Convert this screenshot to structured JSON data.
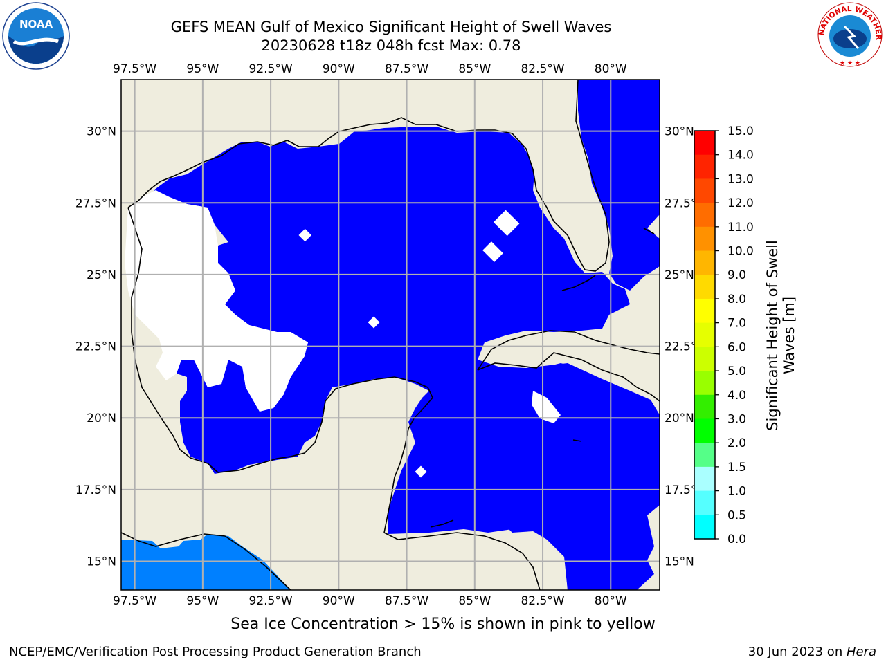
{
  "header": {
    "title_line1": "GEFS MEAN Gulf of Mexico Significant Height of Swell Waves",
    "title_line2": "20230628 t18z 048h fcst   Max: 0.78"
  },
  "logos": {
    "noaa_text": "NOAA",
    "nws_text": "NATIONAL WEATHER SERVICE"
  },
  "map": {
    "lon_labels": [
      "97.5°W",
      "95°W",
      "92.5°W",
      "90°W",
      "87.5°W",
      "85°W",
      "82.5°W",
      "80°W"
    ],
    "lon_values": [
      -97.5,
      -95,
      -92.5,
      -90,
      -87.5,
      -85,
      -82.5,
      -80
    ],
    "lat_labels": [
      "30°N",
      "27.5°N",
      "25°N",
      "22.5°N",
      "20°N",
      "17.5°N",
      "15°N"
    ],
    "lat_values": [
      30,
      27.5,
      25,
      22.5,
      20,
      17.5,
      15
    ],
    "extent": {
      "lon_min": -98,
      "lon_max": -78.2,
      "lat_min": 14.0,
      "lat_max": 31.8
    },
    "colors": {
      "land": "#efedde",
      "ocean_low": "#0000ff",
      "ocean_mid": "#0080ff",
      "grid": "#b0b0b0"
    }
  },
  "colorbar": {
    "label": "Significant Height of Swell Waves [m]",
    "ticks": [
      "15.0",
      "14.0",
      "13.0",
      "12.0",
      "11.0",
      "10.0",
      "9.0",
      "8.0",
      "7.0",
      "6.0",
      "5.0",
      "4.0",
      "3.0",
      "2.0",
      "1.5",
      "1.0",
      "0.5",
      "0.0"
    ],
    "colors": [
      "#ff0000",
      "#ff2400",
      "#ff4800",
      "#ff6d00",
      "#ff9100",
      "#ffb600",
      "#ffda00",
      "#ffff00",
      "#e6ff00",
      "#ccff00",
      "#99ff00",
      "#33ee00",
      "#00ff00",
      "#55ff88",
      "#aaffff",
      "#55ffff",
      "#00ffff",
      "#0080ff",
      "#0000ff"
    ]
  },
  "note": "Sea Ice Concentration > 15% is shown in pink to yellow",
  "footer": {
    "left": "NCEP/EMC/Verification Post Processing Product Generation Branch",
    "right_prefix": "30 Jun 2023 on ",
    "right_host": "Hera"
  }
}
